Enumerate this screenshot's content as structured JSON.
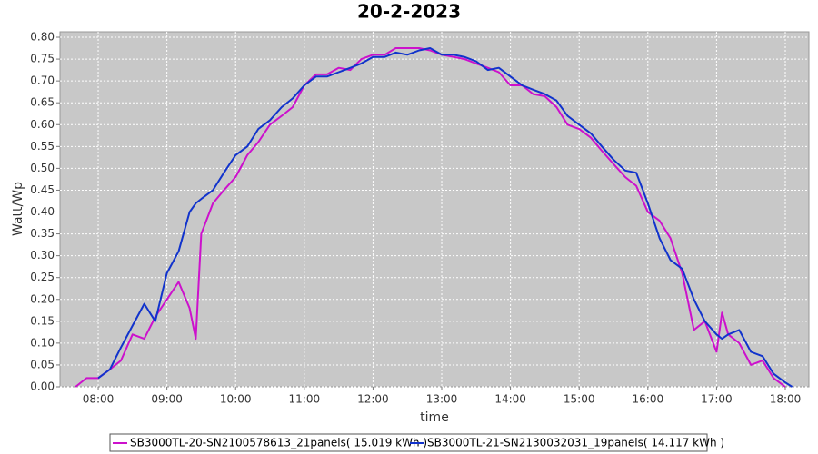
{
  "chart_data": {
    "type": "line",
    "title": "20-2-2023",
    "x_label": "time",
    "y_label": "Watt/Wp",
    "x": [
      7.67,
      7.83,
      8.0,
      8.17,
      8.33,
      8.5,
      8.67,
      8.83,
      9.0,
      9.17,
      9.33,
      9.42,
      9.5,
      9.67,
      9.83,
      10.0,
      10.17,
      10.33,
      10.5,
      10.67,
      10.83,
      11.0,
      11.17,
      11.33,
      11.5,
      11.67,
      11.83,
      12.0,
      12.17,
      12.33,
      12.5,
      12.67,
      12.83,
      13.0,
      13.17,
      13.33,
      13.5,
      13.67,
      13.83,
      14.0,
      14.17,
      14.33,
      14.5,
      14.67,
      14.83,
      15.0,
      15.17,
      15.33,
      15.5,
      15.67,
      15.83,
      16.0,
      16.17,
      16.33,
      16.5,
      16.67,
      16.83,
      17.0,
      17.08,
      17.17,
      17.33,
      17.5,
      17.67,
      17.83,
      18.0,
      18.1
    ],
    "series": [
      {
        "name": "SB3000TL-20-SN2100578613_21panels( 15.019 kWh )",
        "color": "#cc11cc",
        "values": [
          0.0,
          0.02,
          0.02,
          0.04,
          0.06,
          0.12,
          0.11,
          0.16,
          0.2,
          0.24,
          0.18,
          0.11,
          0.35,
          0.42,
          0.45,
          0.48,
          0.53,
          0.56,
          0.6,
          0.62,
          0.64,
          0.69,
          0.715,
          0.715,
          0.73,
          0.725,
          0.75,
          0.76,
          0.76,
          0.775,
          0.775,
          0.775,
          0.77,
          0.76,
          0.755,
          0.75,
          0.74,
          0.73,
          0.72,
          0.69,
          0.69,
          0.67,
          0.665,
          0.64,
          0.6,
          0.59,
          0.57,
          0.54,
          0.51,
          0.48,
          0.46,
          0.4,
          0.38,
          0.34,
          0.26,
          0.13,
          0.15,
          0.08,
          0.17,
          0.12,
          0.1,
          0.05,
          0.06,
          0.02,
          0.0,
          null
        ]
      },
      {
        "name": "SB3000TL-21-SN2130032031_19panels( 14.117 kWh )",
        "color": "#1133cc",
        "values": [
          null,
          null,
          0.02,
          0.04,
          0.09,
          0.14,
          0.19,
          0.15,
          0.26,
          0.31,
          0.4,
          0.42,
          0.43,
          0.45,
          0.49,
          0.53,
          0.55,
          0.59,
          0.61,
          0.64,
          0.66,
          0.69,
          0.71,
          0.71,
          0.72,
          0.73,
          0.74,
          0.755,
          0.755,
          0.765,
          0.76,
          0.77,
          0.775,
          0.76,
          0.76,
          0.755,
          0.745,
          0.725,
          0.73,
          0.71,
          0.69,
          0.68,
          0.67,
          0.655,
          0.62,
          0.6,
          0.58,
          0.55,
          0.52,
          0.495,
          0.49,
          0.42,
          0.34,
          0.29,
          0.27,
          0.2,
          0.15,
          0.12,
          0.11,
          0.12,
          0.13,
          0.08,
          0.07,
          0.03,
          0.01,
          0.0
        ]
      }
    ],
    "xlim": [
      7.444,
      18.344
    ],
    "xticks": [
      {
        "value": 8,
        "label": "08:00"
      },
      {
        "value": 9,
        "label": "09:00"
      },
      {
        "value": 10,
        "label": "10:00"
      },
      {
        "value": 11,
        "label": "11:00"
      },
      {
        "value": 12,
        "label": "12:00"
      },
      {
        "value": 13,
        "label": "13:00"
      },
      {
        "value": 14,
        "label": "14:00"
      },
      {
        "value": 15,
        "label": "15:00"
      },
      {
        "value": 16,
        "label": "16:00"
      },
      {
        "value": 17,
        "label": "17:00"
      },
      {
        "value": 18,
        "label": "18:00"
      }
    ],
    "ylim": [
      0,
      0.8125
    ],
    "yticks": [
      {
        "value": 0,
        "label": "0.00"
      },
      0.05,
      {
        "value": 0.1,
        "label": "0.10"
      },
      0.15,
      {
        "value": 0.2,
        "label": "0.20"
      },
      0.25,
      {
        "value": 0.3,
        "label": "0.30"
      },
      0.35,
      {
        "value": 0.4,
        "label": "0.40"
      },
      0.45,
      {
        "value": 0.5,
        "label": "0.50"
      },
      0.55,
      {
        "value": 0.6,
        "label": "0.60"
      },
      0.65,
      {
        "value": 0.7,
        "label": "0.70"
      },
      0.75,
      {
        "value": 0.8,
        "label": "0.80"
      }
    ],
    "grid": true,
    "legend": "bottom"
  }
}
